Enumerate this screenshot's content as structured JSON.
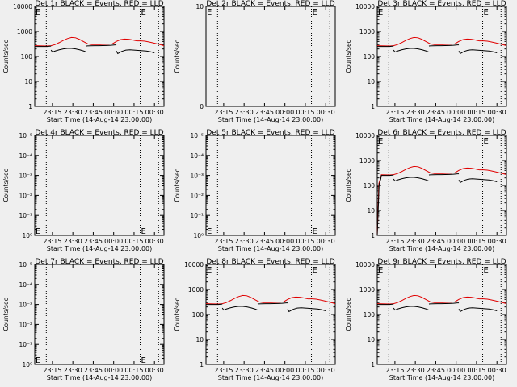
{
  "colors": {
    "background": "#efefef",
    "events": "#000000",
    "lld": "#e00000",
    "axis": "#000000"
  },
  "shared": {
    "xlabel": "Start Time (14-Aug-14 23:00:00)",
    "ylabel": "Counts/sec",
    "x_ticks": [
      {
        "t": 15,
        "label": "23:15"
      },
      {
        "t": 30,
        "label": "23:30"
      },
      {
        "t": 45,
        "label": "23:45"
      },
      {
        "t": 60,
        "label": "00:00"
      },
      {
        "t": 75,
        "label": "00:15"
      },
      {
        "t": 90,
        "label": "00:30"
      }
    ],
    "xlim_minutes": [
      2,
      97
    ],
    "vlines_minutes": [
      10.5,
      79.5,
      93
    ],
    "log_ticks_full": [
      "1",
      "10",
      "100",
      "1000",
      "10000"
    ],
    "log_ticks_empty": [
      "10⁰",
      "10⁻¹",
      "10⁻²",
      "10⁻³",
      "10⁻⁴",
      "10⁻⁵"
    ]
  },
  "chart_data": [
    {
      "id": "det1",
      "type": "line",
      "title": "Det 1r BLACK = Events, RED = LLD",
      "scale": "log",
      "ylim": [
        1,
        10000
      ],
      "has_data": true,
      "ramp": false,
      "e_letter": "E",
      "e_pos": "top"
    },
    {
      "id": "det2",
      "type": "line",
      "title": "Det 2r BLACK = Events, RED = LLD",
      "scale": "linear",
      "ylim": [
        0,
        10
      ],
      "y_ticks": [
        "0",
        "10"
      ],
      "has_data": false,
      "e_letter": "E",
      "e_pos": "top"
    },
    {
      "id": "det3",
      "type": "line",
      "title": "Det 3r BLACK = Events, RED = LLD",
      "scale": "log",
      "ylim": [
        1,
        10000
      ],
      "has_data": true,
      "ramp": false,
      "e_letter": "E",
      "e_pos": "top"
    },
    {
      "id": "det4",
      "type": "line",
      "title": "Det 4r BLACK = Events, RED = LLD",
      "scale": "log",
      "ylim": [
        1,
        100000
      ],
      "has_data": false,
      "e_letter": "E",
      "e_pos": "bottom"
    },
    {
      "id": "det5",
      "type": "line",
      "title": "Det 5r BLACK = Events, RED = LLD",
      "scale": "log",
      "ylim": [
        1,
        100000
      ],
      "has_data": false,
      "e_letter": "E",
      "e_pos": "bottom"
    },
    {
      "id": "det6",
      "type": "line",
      "title": "Det 6r BLACK = Events, RED = LLD",
      "scale": "log",
      "ylim": [
        1,
        10000
      ],
      "has_data": true,
      "ramp": true,
      "e_letter": "E",
      "e_pos": "top"
    },
    {
      "id": "det7",
      "type": "line",
      "title": "Det 7r BLACK = Events, RED = LLD",
      "scale": "log",
      "ylim": [
        1,
        100000
      ],
      "has_data": false,
      "e_letter": "E",
      "e_pos": "bottom"
    },
    {
      "id": "det8",
      "type": "line",
      "title": "Det 8r BLACK = Events, RED = LLD",
      "scale": "log",
      "ylim": [
        1,
        10000
      ],
      "has_data": true,
      "ramp": false,
      "e_letter": "E",
      "e_pos": "top"
    },
    {
      "id": "det9",
      "type": "line",
      "title": "Det 9r BLACK = Events, RED = LLD",
      "scale": "log",
      "ylim": [
        1,
        10000
      ],
      "has_data": true,
      "ramp": false,
      "e_letter": "E",
      "e_pos": "top"
    }
  ],
  "series_data": {
    "lld": {
      "x": [
        2,
        5,
        8,
        11,
        14,
        17,
        20,
        23,
        26,
        29,
        32,
        35,
        38,
        41,
        44,
        47,
        50,
        53,
        56,
        59,
        62,
        65,
        68,
        71,
        74,
        77,
        80,
        83,
        86,
        89,
        92,
        95,
        97
      ],
      "y": [
        270,
        268,
        265,
        262,
        270,
        300,
        360,
        440,
        520,
        580,
        560,
        480,
        390,
        320,
        300,
        300,
        300,
        305,
        310,
        320,
        400,
        470,
        500,
        490,
        460,
        420,
        420,
        410,
        380,
        350,
        320,
        290,
        270
      ]
    },
    "events": [
      {
        "x": [
          2,
          5,
          8,
          11,
          14
        ],
        "y": [
          250,
          250,
          250,
          250,
          260
        ]
      },
      {
        "x": [
          14,
          15,
          17,
          20,
          23,
          26,
          29,
          32,
          35,
          38,
          40
        ],
        "y": [
          180,
          150,
          165,
          185,
          200,
          210,
          210,
          200,
          185,
          165,
          150
        ]
      },
      {
        "x": [
          40,
          40.5,
          43,
          46,
          49,
          52,
          55,
          58,
          61,
          62
        ],
        "y": [
          260,
          265,
          268,
          270,
          270,
          272,
          275,
          280,
          290,
          292
        ]
      },
      {
        "x": [
          62,
          63,
          66,
          69,
          72,
          75,
          78,
          81,
          84,
          87,
          90
        ],
        "y": [
          165,
          130,
          160,
          180,
          185,
          180,
          175,
          170,
          165,
          155,
          140
        ]
      }
    ]
  }
}
